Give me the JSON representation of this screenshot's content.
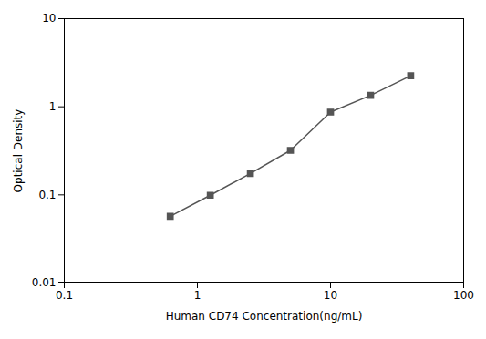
{
  "chart_data": {
    "type": "line",
    "x": [
      0.625,
      1.25,
      2.5,
      5.0,
      10.0,
      20.0,
      40.0
    ],
    "values": [
      0.057,
      0.099,
      0.175,
      0.32,
      0.87,
      1.35,
      2.25
    ],
    "xlabel": "Human CD74 Concentration(ng/mL)",
    "ylabel": "Optical Density",
    "xlim": [
      0.1,
      100
    ],
    "ylim": [
      0.01,
      10
    ],
    "xticks": [
      0.1,
      1,
      10,
      100
    ],
    "yticks": [
      0.01,
      0.1,
      1,
      10
    ],
    "log": true,
    "grid": false,
    "marker": "square",
    "color": "#555555"
  }
}
